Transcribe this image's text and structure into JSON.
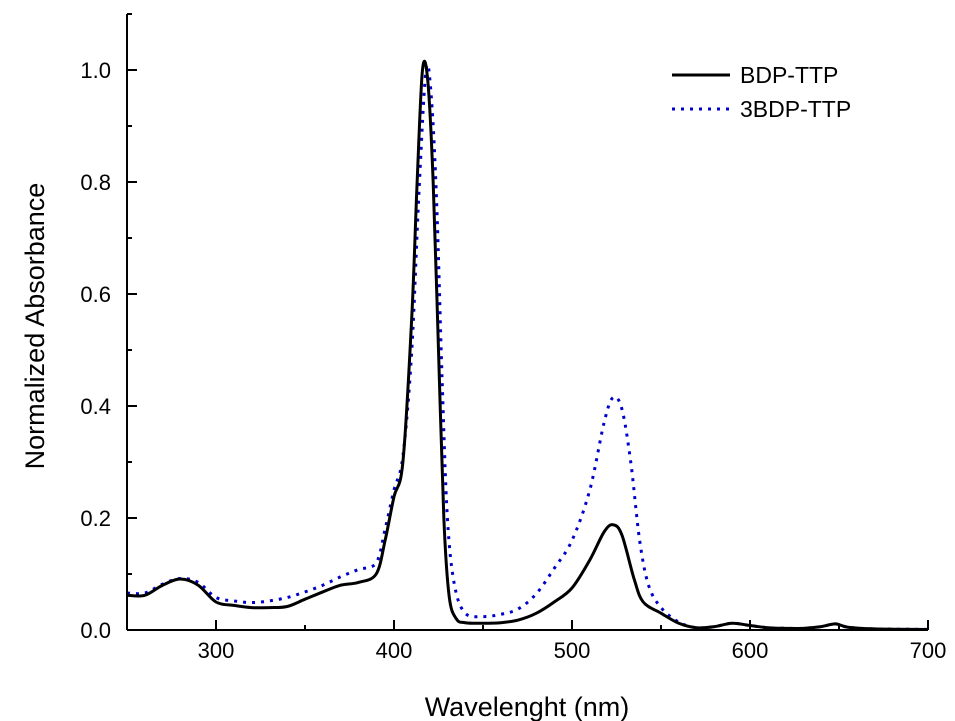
{
  "chart_data": {
    "type": "line",
    "xlabel": "Wavelenght (nm)",
    "ylabel": "Normalized Absorbance",
    "xlim": [
      250,
      700
    ],
    "ylim": [
      0.0,
      1.1
    ],
    "x_ticks": [
      300,
      400,
      500,
      600,
      700
    ],
    "x_tick_labels": [
      "300",
      "400",
      "500",
      "600",
      "700"
    ],
    "y_ticks": [
      0.0,
      0.2,
      0.4,
      0.6,
      0.8,
      1.0
    ],
    "y_tick_labels": [
      "0.0",
      "0.2",
      "0.4",
      "0.6",
      "0.8",
      "1.0"
    ],
    "grid": false,
    "legend_position": "top-right",
    "series": [
      {
        "name": "BDP-TTP",
        "style": "solid",
        "color": "#000000",
        "points": [
          [
            250,
            0.062
          ],
          [
            260,
            0.062
          ],
          [
            270,
            0.08
          ],
          [
            280,
            0.091
          ],
          [
            290,
            0.08
          ],
          [
            300,
            0.05
          ],
          [
            310,
            0.044
          ],
          [
            320,
            0.04
          ],
          [
            330,
            0.04
          ],
          [
            340,
            0.042
          ],
          [
            350,
            0.055
          ],
          [
            360,
            0.068
          ],
          [
            370,
            0.08
          ],
          [
            380,
            0.085
          ],
          [
            390,
            0.1
          ],
          [
            395,
            0.16
          ],
          [
            400,
            0.238
          ],
          [
            405,
            0.3
          ],
          [
            410,
            0.56
          ],
          [
            413,
            0.8
          ],
          [
            416,
            1.0
          ],
          [
            419,
            0.98
          ],
          [
            422,
            0.8
          ],
          [
            425,
            0.5
          ],
          [
            428,
            0.2
          ],
          [
            431,
            0.06
          ],
          [
            435,
            0.02
          ],
          [
            440,
            0.013
          ],
          [
            450,
            0.012
          ],
          [
            460,
            0.013
          ],
          [
            470,
            0.018
          ],
          [
            480,
            0.03
          ],
          [
            490,
            0.05
          ],
          [
            500,
            0.075
          ],
          [
            510,
            0.125
          ],
          [
            518,
            0.175
          ],
          [
            523,
            0.188
          ],
          [
            528,
            0.17
          ],
          [
            535,
            0.09
          ],
          [
            540,
            0.05
          ],
          [
            550,
            0.03
          ],
          [
            560,
            0.012
          ],
          [
            570,
            0.004
          ],
          [
            580,
            0.006
          ],
          [
            590,
            0.012
          ],
          [
            600,
            0.008
          ],
          [
            610,
            0.004
          ],
          [
            620,
            0.003
          ],
          [
            630,
            0.003
          ],
          [
            640,
            0.006
          ],
          [
            648,
            0.011
          ],
          [
            655,
            0.005
          ],
          [
            670,
            0.002
          ],
          [
            700,
            0.001
          ]
        ]
      },
      {
        "name": "3BDP-TTP",
        "style": "dotted",
        "color": "#0000CC",
        "points": [
          [
            250,
            0.066
          ],
          [
            260,
            0.066
          ],
          [
            270,
            0.082
          ],
          [
            280,
            0.092
          ],
          [
            290,
            0.085
          ],
          [
            300,
            0.058
          ],
          [
            310,
            0.052
          ],
          [
            320,
            0.049
          ],
          [
            330,
            0.052
          ],
          [
            340,
            0.058
          ],
          [
            350,
            0.068
          ],
          [
            360,
            0.08
          ],
          [
            370,
            0.095
          ],
          [
            380,
            0.108
          ],
          [
            390,
            0.12
          ],
          [
            395,
            0.18
          ],
          [
            400,
            0.25
          ],
          [
            405,
            0.31
          ],
          [
            410,
            0.5
          ],
          [
            414,
            0.78
          ],
          [
            418,
            1.0
          ],
          [
            421,
            0.95
          ],
          [
            424,
            0.76
          ],
          [
            427,
            0.45
          ],
          [
            430,
            0.2
          ],
          [
            434,
            0.08
          ],
          [
            440,
            0.03
          ],
          [
            450,
            0.024
          ],
          [
            460,
            0.028
          ],
          [
            470,
            0.038
          ],
          [
            480,
            0.065
          ],
          [
            490,
            0.11
          ],
          [
            500,
            0.16
          ],
          [
            510,
            0.25
          ],
          [
            518,
            0.37
          ],
          [
            523,
            0.415
          ],
          [
            528,
            0.395
          ],
          [
            533,
            0.3
          ],
          [
            538,
            0.16
          ],
          [
            543,
            0.08
          ],
          [
            550,
            0.04
          ],
          [
            560,
            0.014
          ],
          [
            570,
            0.004
          ],
          [
            580,
            0.006
          ],
          [
            590,
            0.012
          ],
          [
            600,
            0.008
          ],
          [
            610,
            0.004
          ],
          [
            620,
            0.003
          ],
          [
            630,
            0.003
          ],
          [
            640,
            0.006
          ],
          [
            648,
            0.011
          ],
          [
            655,
            0.005
          ],
          [
            670,
            0.002
          ],
          [
            700,
            0.001
          ]
        ]
      }
    ]
  }
}
